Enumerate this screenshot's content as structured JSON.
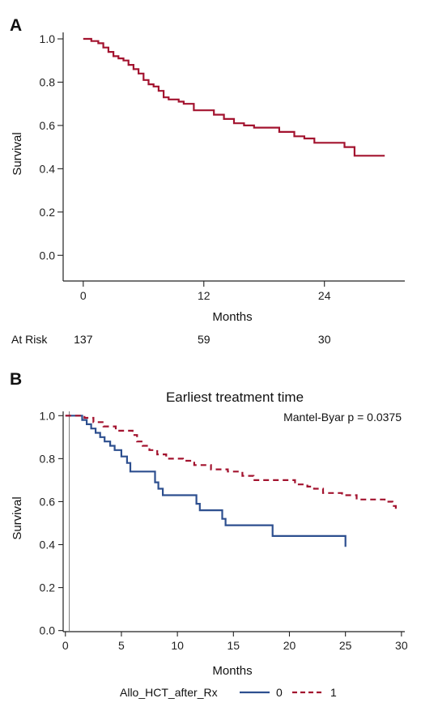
{
  "chart_data": [
    {
      "panel": "A",
      "type": "line",
      "title": "",
      "xlabel": "Months",
      "ylabel": "Survival",
      "xlim": [
        -2,
        32
      ],
      "ylim": [
        -0.1,
        1.03
      ],
      "xticks": [
        0,
        12,
        24
      ],
      "yticks": [
        0.0,
        0.2,
        0.4,
        0.6,
        0.8,
        1.0
      ],
      "grid": false,
      "color": "#a3132f",
      "series": [
        {
          "style": "solid",
          "x": [
            0,
            0.8,
            1.5,
            2.0,
            2.5,
            3.0,
            3.5,
            4.0,
            4.5,
            5.0,
            5.5,
            6.0,
            6.5,
            7.0,
            7.5,
            8.0,
            8.5,
            9.0,
            9.5,
            10.0,
            11.0,
            12.0,
            13.0,
            14.0,
            15.0,
            16.0,
            17.0,
            19.5,
            21.0,
            22.0,
            23.0,
            24.0,
            26.0,
            27.0,
            30.0
          ],
          "y": [
            1.0,
            0.99,
            0.98,
            0.96,
            0.94,
            0.92,
            0.91,
            0.9,
            0.88,
            0.86,
            0.84,
            0.81,
            0.79,
            0.78,
            0.76,
            0.73,
            0.72,
            0.72,
            0.71,
            0.7,
            0.67,
            0.67,
            0.65,
            0.63,
            0.61,
            0.6,
            0.59,
            0.57,
            0.55,
            0.54,
            0.52,
            0.52,
            0.5,
            0.46,
            0.46
          ]
        }
      ],
      "at_risk": {
        "label": "At Risk",
        "times": [
          0,
          12,
          24
        ],
        "counts": [
          "137",
          "59",
          "30"
        ]
      }
    },
    {
      "panel": "B",
      "type": "line",
      "title": "Earliest treatment time",
      "xlabel": "Months",
      "ylabel": "Survival",
      "xlim": [
        -0.2,
        30.3
      ],
      "ylim": [
        -0.005,
        1.02
      ],
      "xticks": [
        0,
        5,
        10,
        15,
        20,
        25,
        30
      ],
      "yticks": [
        0.0,
        0.2,
        0.4,
        0.6,
        0.8,
        1.0
      ],
      "grid": false,
      "annotation": "Mantel-Byar p = 0.0375",
      "legend": {
        "title": "Allo_HCT_after_Rx",
        "position": "bottom"
      },
      "series": [
        {
          "name": "0",
          "style": "solid",
          "color": "#2d4f8f",
          "x": [
            0,
            1.5,
            1.9,
            2.3,
            2.7,
            3.1,
            3.5,
            4.0,
            4.4,
            5.0,
            5.5,
            5.8,
            8.0,
            8.3,
            8.7,
            11.7,
            12.0,
            14.0,
            14.3,
            18.5,
            25.0
          ],
          "y": [
            1.0,
            0.98,
            0.96,
            0.94,
            0.92,
            0.9,
            0.88,
            0.86,
            0.84,
            0.81,
            0.78,
            0.74,
            0.69,
            0.66,
            0.63,
            0.59,
            0.56,
            0.52,
            0.49,
            0.44,
            0.39
          ]
        },
        {
          "name": "1",
          "style": "dashed",
          "color": "#a3132f",
          "x": [
            0,
            1.7,
            2.5,
            3.4,
            4.5,
            6.0,
            6.4,
            6.9,
            7.5,
            8.2,
            9.0,
            10.5,
            11.5,
            13.0,
            14.5,
            15.8,
            16.8,
            20.5,
            21.0,
            21.6,
            22.2,
            23.0,
            24.7,
            26.0,
            28.5,
            29.2,
            29.5
          ],
          "y": [
            1.0,
            0.99,
            0.97,
            0.95,
            0.93,
            0.91,
            0.88,
            0.86,
            0.84,
            0.82,
            0.8,
            0.79,
            0.77,
            0.75,
            0.74,
            0.72,
            0.7,
            0.68,
            0.68,
            0.67,
            0.66,
            0.64,
            0.63,
            0.61,
            0.6,
            0.58,
            0.56
          ]
        }
      ]
    }
  ]
}
